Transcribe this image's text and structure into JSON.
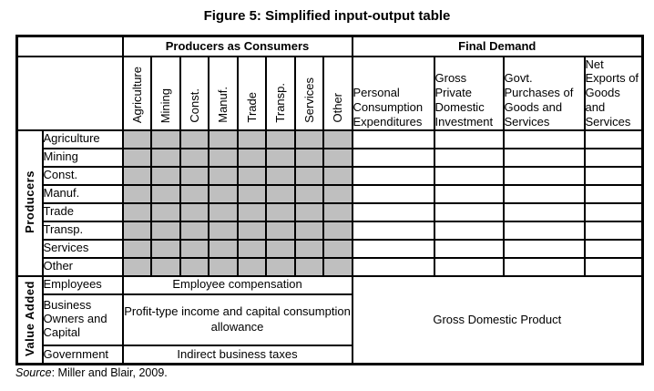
{
  "title": "Figure 5: Simplified input-output table",
  "table": {
    "producers_as_consumers_header": "Producers as Consumers",
    "final_demand_header": "Final Demand",
    "producer_sectors": [
      "Agriculture",
      "Mining",
      "Const.",
      "Manuf.",
      "Trade",
      "Transp.",
      "Services",
      "Other"
    ],
    "final_demand_columns": [
      "Personal Consumption Expenditures",
      "Gross Private Domestic Investment",
      "Govt. Purchases of Goods and Services",
      "Net Exports of Goods and Services"
    ],
    "producers_group_label": "Producers",
    "value_added_group_label": "Value Added",
    "value_added_rows": [
      {
        "label": "Employees",
        "value": "Employee compensation"
      },
      {
        "label": "Business Owners and Capital",
        "value": "Profit-type income and capital consumption allowance"
      },
      {
        "label": "Government",
        "value": "Indirect business taxes"
      }
    ],
    "gdp_cell": "Gross Domestic Product",
    "shaded_cell_color": "#bfbfbf"
  },
  "source": {
    "label": "Source",
    "rest": ": Miller and Blair, 2009."
  }
}
